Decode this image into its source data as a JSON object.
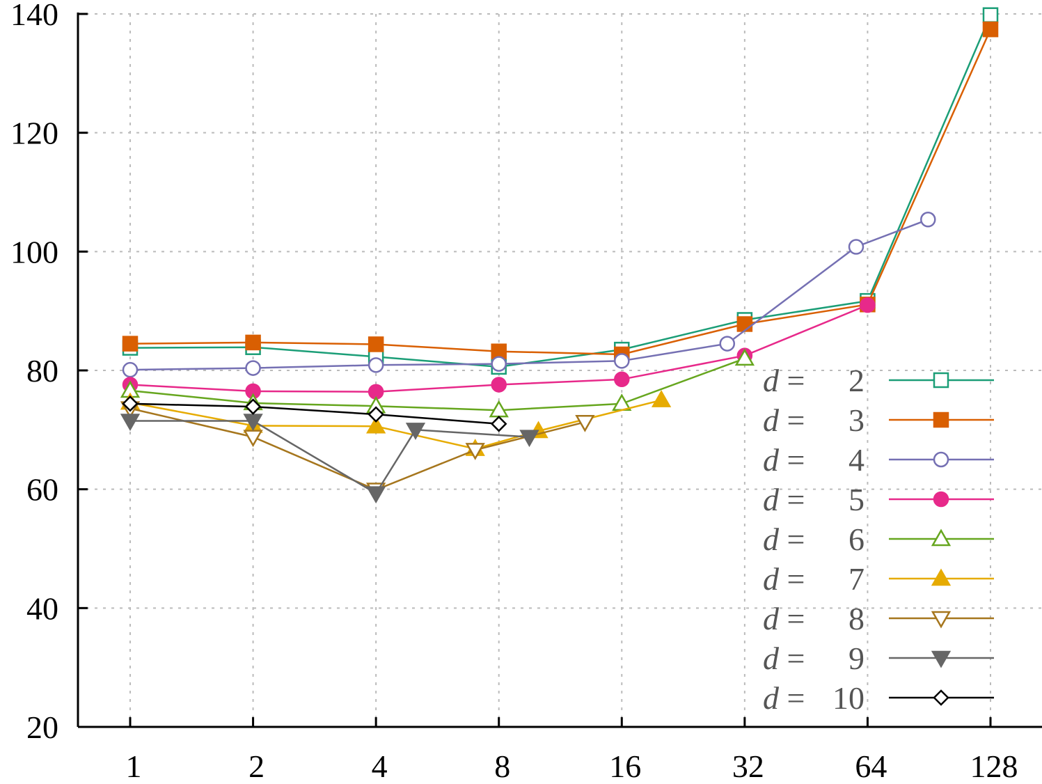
{
  "chart_data": {
    "type": "line",
    "title": "",
    "xlabel": "",
    "ylabel": "",
    "x_scale": "log2",
    "x_ticks": [
      "1",
      "2",
      "4",
      "8",
      "16",
      "32",
      "64",
      "128"
    ],
    "y_ticks": [
      "20",
      "40",
      "60",
      "80",
      "100",
      "120",
      "140"
    ],
    "ylim": [
      20,
      140
    ],
    "xlim": [
      0.65,
      181
    ],
    "grid": true,
    "legend_position": "bottom-right",
    "legend_prefix": "d =",
    "series": [
      {
        "name": "2",
        "label": "2",
        "color": "#1b9e77",
        "marker": "square-open",
        "points": [
          [
            1,
            83.8
          ],
          [
            2,
            83.9
          ],
          [
            4,
            82.3
          ],
          [
            8,
            80.6
          ],
          [
            16,
            83.5
          ],
          [
            32,
            88.5
          ],
          [
            64,
            91.7
          ],
          [
            128,
            139.8
          ]
        ]
      },
      {
        "name": "3",
        "label": "3",
        "color": "#d95f02",
        "marker": "square-filled",
        "points": [
          [
            1,
            84.5
          ],
          [
            2,
            84.7
          ],
          [
            4,
            84.4
          ],
          [
            8,
            83.2
          ],
          [
            16,
            82.7
          ],
          [
            32,
            87.8
          ],
          [
            64,
            91.1
          ],
          [
            128,
            137.4
          ]
        ]
      },
      {
        "name": "4",
        "label": "4",
        "color": "#7570b3",
        "marker": "circle-open",
        "points": [
          [
            1,
            80.1
          ],
          [
            2,
            80.4
          ],
          [
            4,
            80.9
          ],
          [
            8,
            81.1
          ],
          [
            16,
            81.6
          ],
          [
            29,
            84.5
          ],
          [
            60,
            100.8
          ],
          [
            90,
            105.4
          ]
        ]
      },
      {
        "name": "5",
        "label": "5",
        "color": "#e7298a",
        "marker": "circle-filled",
        "points": [
          [
            1,
            77.6
          ],
          [
            2,
            76.5
          ],
          [
            4,
            76.4
          ],
          [
            8,
            77.6
          ],
          [
            16,
            78.5
          ],
          [
            32,
            82.5
          ],
          [
            64,
            91.0
          ]
        ]
      },
      {
        "name": "6",
        "label": "6",
        "color": "#66a61e",
        "marker": "triangle-up-open",
        "points": [
          [
            1,
            76.6
          ],
          [
            2,
            74.5
          ],
          [
            4,
            74.0
          ],
          [
            8,
            73.3
          ],
          [
            16,
            74.4
          ],
          [
            32,
            82.0
          ]
        ]
      },
      {
        "name": "7",
        "label": "7",
        "color": "#e6ab02",
        "marker": "triangle-up-filled",
        "points": [
          [
            1,
            74.6
          ],
          [
            2,
            70.7
          ],
          [
            4,
            70.6
          ],
          [
            7,
            66.8
          ],
          [
            10,
            69.8
          ],
          [
            20,
            75.0
          ]
        ]
      },
      {
        "name": "8",
        "label": "8",
        "color": "#a6761d",
        "marker": "triangle-down-open",
        "points": [
          [
            1,
            73.6
          ],
          [
            2,
            68.8
          ],
          [
            4,
            59.9
          ],
          [
            7,
            66.6
          ],
          [
            13,
            71.3
          ]
        ]
      },
      {
        "name": "9",
        "label": "9",
        "color": "#666666",
        "marker": "triangle-down-filled",
        "points": [
          [
            1,
            71.5
          ],
          [
            2,
            71.5
          ],
          [
            4,
            59.3
          ],
          [
            5,
            70.0
          ],
          [
            9.5,
            68.8
          ]
        ]
      },
      {
        "name": "10",
        "label": "10",
        "color": "#000000",
        "marker": "diamond-open",
        "points": [
          [
            1,
            74.4
          ],
          [
            2,
            73.9
          ],
          [
            4,
            72.6
          ],
          [
            8,
            71.0
          ]
        ]
      }
    ]
  }
}
